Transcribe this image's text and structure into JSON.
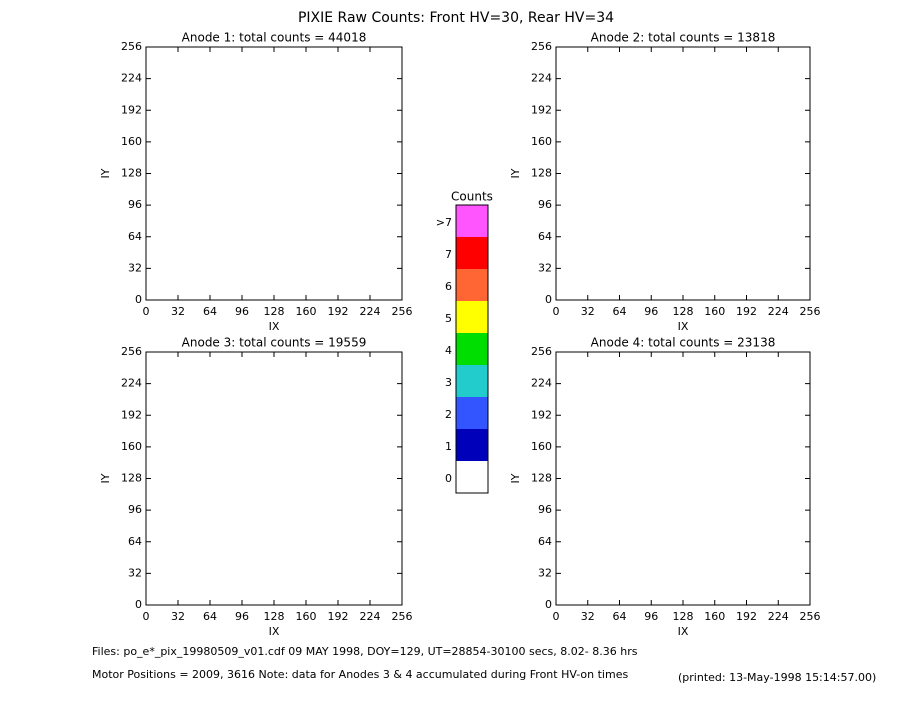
{
  "title": "PIXIE Raw Counts:  Front HV=30, Rear HV=34",
  "chart_data": [
    {
      "type": "heatmap",
      "title": "Anode 1: total counts = 44018",
      "xlabel": "IX",
      "ylabel": "IY",
      "xlim": [
        0,
        256
      ],
      "ylim": [
        0,
        256
      ],
      "xticks": [
        0,
        32,
        64,
        96,
        128,
        160,
        192,
        224,
        256
      ],
      "yticks": [
        0,
        32,
        64,
        96,
        128,
        160,
        192,
        224,
        256
      ]
    },
    {
      "type": "heatmap",
      "title": "Anode 2: total counts = 13818",
      "xlabel": "IX",
      "ylabel": "IY",
      "xlim": [
        0,
        256
      ],
      "ylim": [
        0,
        256
      ],
      "xticks": [
        0,
        32,
        64,
        96,
        128,
        160,
        192,
        224,
        256
      ],
      "yticks": [
        0,
        32,
        64,
        96,
        128,
        160,
        192,
        224,
        256
      ]
    },
    {
      "type": "heatmap",
      "title": "Anode 3: total counts = 19559",
      "xlabel": "IX",
      "ylabel": "IY",
      "xlim": [
        0,
        256
      ],
      "ylim": [
        0,
        256
      ],
      "xticks": [
        0,
        32,
        64,
        96,
        128,
        160,
        192,
        224,
        256
      ],
      "yticks": [
        0,
        32,
        64,
        96,
        128,
        160,
        192,
        224,
        256
      ]
    },
    {
      "type": "heatmap",
      "title": "Anode 4: total counts = 23138",
      "xlabel": "IX",
      "ylabel": "IY",
      "xlim": [
        0,
        256
      ],
      "ylim": [
        0,
        256
      ],
      "xticks": [
        0,
        32,
        64,
        96,
        128,
        160,
        192,
        224,
        256
      ],
      "yticks": [
        0,
        32,
        64,
        96,
        128,
        160,
        192,
        224,
        256
      ]
    }
  ],
  "colorbar": {
    "title": "Counts",
    "levels": [
      {
        "label": ">7",
        "color": "#ff55ff"
      },
      {
        "label": "7",
        "color": "#ff0000"
      },
      {
        "label": "6",
        "color": "#ff6633"
      },
      {
        "label": "5",
        "color": "#ffff00"
      },
      {
        "label": "4",
        "color": "#00dd00"
      },
      {
        "label": "3",
        "color": "#22cccc"
      },
      {
        "label": "2",
        "color": "#3355ff"
      },
      {
        "label": "1",
        "color": "#0000bb"
      },
      {
        "label": "0",
        "color": "#ffffff"
      }
    ]
  },
  "footer": {
    "files": "Files: po_e*_pix_19980509_v01.cdf    09 MAY 1998, DOY=129, UT=28854-30100 secs,  8.02- 8.36 hrs",
    "motor": "Motor Positions = 2009, 3616   Note: data for Anodes 3 & 4 accumulated during Front HV-on times",
    "printed": "(printed: 13-May-1998 15:14:57.00)"
  }
}
